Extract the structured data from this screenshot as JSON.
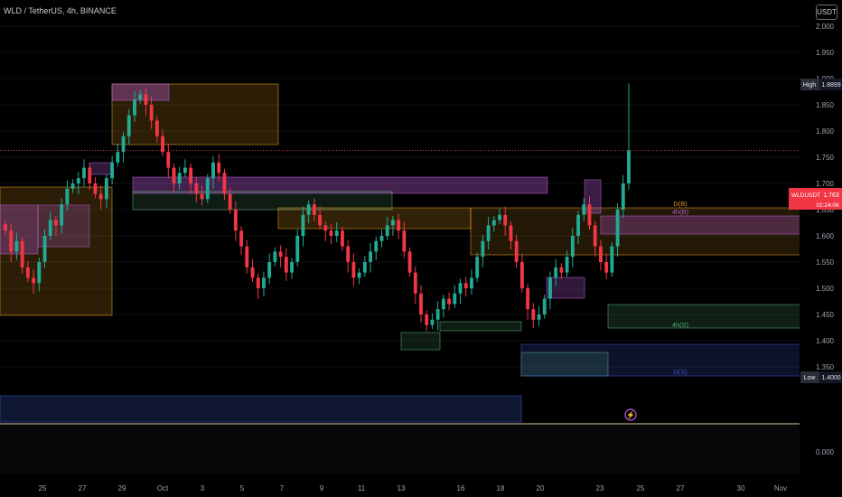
{
  "header": {
    "symbol_label": "WLD / TetherUS, 4h, BINANCE",
    "currency_button": "USDT"
  },
  "colors": {
    "up": "#22ab94",
    "down": "#f23645",
    "price_line": "#f23645",
    "orange": "#f5a623",
    "purple": "#c05fe0",
    "green": "#5fbf7f",
    "blue": "#3b5ccc"
  },
  "chart_data": {
    "type": "candlestick",
    "ylim": [
      1.3,
      2.0
    ],
    "y_ticks": [
      "2.000",
      "1.950",
      "1.900",
      "1.850",
      "1.800",
      "1.750",
      "1.700",
      "1.650",
      "1.600",
      "1.550",
      "1.500",
      "1.450",
      "1.400",
      "1.350"
    ],
    "x_ticks": [
      "25",
      "27",
      "29",
      "Oct",
      "3",
      "5",
      "7",
      "9",
      "11",
      "13",
      "16",
      "18",
      "20",
      "23",
      "25",
      "27",
      "30",
      "Nov"
    ],
    "price_labels": [
      {
        "tag": "WLDUSDT",
        "value": "1.763",
        "sub": "02:24:06"
      },
      {
        "tag": "High",
        "value": "1.8899"
      },
      {
        "tag": "Low",
        "value": "1.4000"
      }
    ],
    "zone_labels": [
      "D(B)",
      "4h(B)",
      "4h(S)",
      "D(S)"
    ],
    "oscillator_tick": "0.000",
    "closes": [
      1.61,
      1.57,
      1.59,
      1.54,
      1.52,
      1.51,
      1.55,
      1.6,
      1.63,
      1.62,
      1.66,
      1.69,
      1.7,
      1.71,
      1.73,
      1.7,
      1.68,
      1.67,
      1.71,
      1.74,
      1.76,
      1.79,
      1.83,
      1.86,
      1.87,
      1.85,
      1.82,
      1.79,
      1.76,
      1.73,
      1.7,
      1.72,
      1.73,
      1.7,
      1.68,
      1.67,
      1.71,
      1.74,
      1.72,
      1.68,
      1.65,
      1.61,
      1.58,
      1.54,
      1.52,
      1.5,
      1.52,
      1.55,
      1.57,
      1.56,
      1.53,
      1.55,
      1.6,
      1.64,
      1.66,
      1.64,
      1.62,
      1.61,
      1.6,
      1.61,
      1.58,
      1.55,
      1.52,
      1.53,
      1.55,
      1.57,
      1.59,
      1.6,
      1.62,
      1.63,
      1.61,
      1.57,
      1.53,
      1.49,
      1.45,
      1.43,
      1.44,
      1.46,
      1.48,
      1.47,
      1.49,
      1.51,
      1.5,
      1.52,
      1.56,
      1.59,
      1.62,
      1.63,
      1.64,
      1.62,
      1.59,
      1.55,
      1.5,
      1.46,
      1.44,
      1.45,
      1.48,
      1.52,
      1.54,
      1.53,
      1.56,
      1.6,
      1.64,
      1.66,
      1.62,
      1.58,
      1.55,
      1.53,
      1.58,
      1.65,
      1.7,
      1.763
    ]
  }
}
